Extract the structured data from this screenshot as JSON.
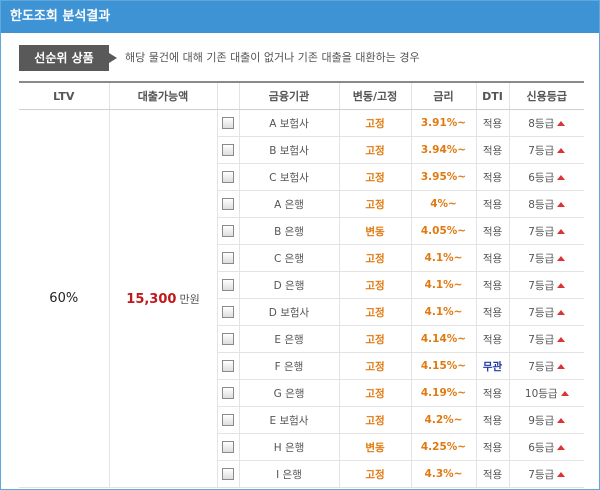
{
  "panel": {
    "title": "한도조회 분석결과"
  },
  "section": {
    "tag": "선순위 상품",
    "note": "해당 물건에 대해 기존 대출이 없거나 기존 대출을 대환하는 경우"
  },
  "table": {
    "headers": [
      "LTV",
      "대출가능액",
      "",
      "금융기관",
      "변동/고정",
      "금리",
      "DTI",
      "신용등급"
    ],
    "ltv": "60%",
    "amount": "15,300",
    "amount_unit": "만원",
    "rows": [
      {
        "institution": "A 보험사",
        "type": "고정",
        "rate": "3.91%~",
        "dti": "적용",
        "grade": "8등급"
      },
      {
        "institution": "B 보험사",
        "type": "고정",
        "rate": "3.94%~",
        "dti": "적용",
        "grade": "7등급"
      },
      {
        "institution": "C 보험사",
        "type": "고정",
        "rate": "3.95%~",
        "dti": "적용",
        "grade": "6등급"
      },
      {
        "institution": "A 은행",
        "type": "고정",
        "rate": "4%~",
        "dti": "적용",
        "grade": "8등급"
      },
      {
        "institution": "B 은행",
        "type": "변동",
        "rate": "4.05%~",
        "dti": "적용",
        "grade": "7등급"
      },
      {
        "institution": "C 은행",
        "type": "고정",
        "rate": "4.1%~",
        "dti": "적용",
        "grade": "7등급"
      },
      {
        "institution": "D 은행",
        "type": "고정",
        "rate": "4.1%~",
        "dti": "적용",
        "grade": "7등급"
      },
      {
        "institution": "D 보험사",
        "type": "고정",
        "rate": "4.1%~",
        "dti": "적용",
        "grade": "7등급"
      },
      {
        "institution": "E 은행",
        "type": "고정",
        "rate": "4.14%~",
        "dti": "적용",
        "grade": "7등급"
      },
      {
        "institution": "F 은행",
        "type": "고정",
        "rate": "4.15%~",
        "dti": "무관",
        "grade": "7등급"
      },
      {
        "institution": "G 은행",
        "type": "고정",
        "rate": "4.19%~",
        "dti": "적용",
        "grade": "10등급"
      },
      {
        "institution": "E 보험사",
        "type": "고정",
        "rate": "4.2%~",
        "dti": "적용",
        "grade": "9등급"
      },
      {
        "institution": "H 은행",
        "type": "변동",
        "rate": "4.25%~",
        "dti": "적용",
        "grade": "6등급"
      },
      {
        "institution": "I 은행",
        "type": "고정",
        "rate": "4.3%~",
        "dti": "적용",
        "grade": "7등급"
      }
    ]
  },
  "colors": {
    "topbar": "#3e93d4",
    "amount": "#c0181b",
    "rate": "#e07a10",
    "dti_none": "#1d3aa0"
  },
  "icons": {
    "grade_indicator": "up-triangle-icon"
  }
}
